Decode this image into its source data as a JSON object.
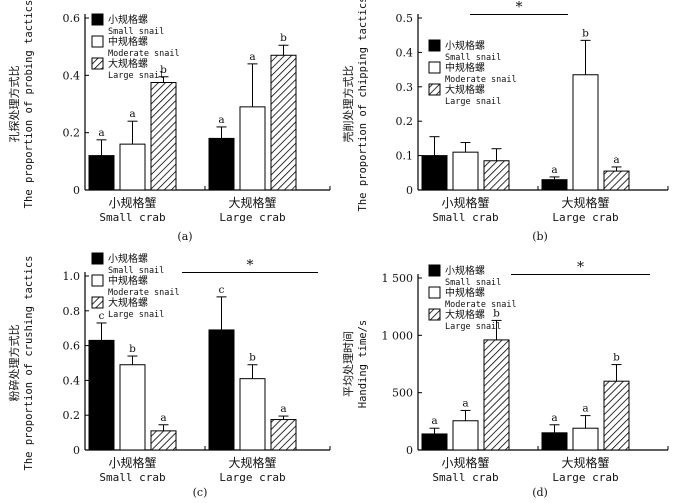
{
  "figure": {
    "legend": [
      {
        "cn": "小规格螺",
        "en": "Small snail",
        "fill": "solid",
        "color": "#000000"
      },
      {
        "cn": "中规格螺",
        "en": "Moderate snail",
        "fill": "white",
        "color": "#ffffff"
      },
      {
        "cn": "大规格螺",
        "en": "Large snail",
        "fill": "hatch",
        "color": "#ffffff"
      }
    ],
    "categories": [
      {
        "cn": "小规格蟹",
        "en": "Small crab"
      },
      {
        "cn": "大规格蟹",
        "en": "Large crab"
      }
    ]
  },
  "chart_data": [
    {
      "type": "bar",
      "panel_label": "(a)",
      "ylabel_cn": "孔探处理方式比",
      "ylabel_en": "The proportion of probing tactics",
      "ylim": [
        0,
        0.6
      ],
      "yticks": [
        0,
        0.2,
        0.4,
        0.6
      ],
      "ytick_labels": [
        "0",
        "0.2",
        "0.4",
        "0.6"
      ],
      "series": [
        {
          "name": "Small snail",
          "values": [
            0.12,
            0.18
          ],
          "errors": [
            0.055,
            0.04
          ],
          "letters": [
            "a",
            "a"
          ]
        },
        {
          "name": "Moderate snail",
          "values": [
            0.16,
            0.29
          ],
          "errors": [
            0.08,
            0.15
          ],
          "letters": [
            "a",
            "a"
          ]
        },
        {
          "name": "Large snail",
          "values": [
            0.375,
            0.47
          ],
          "errors": [
            0.02,
            0.035
          ],
          "letters": [
            "b",
            "b"
          ]
        }
      ],
      "significance": null
    },
    {
      "type": "bar",
      "panel_label": "(b)",
      "ylabel_cn": "壳削处理方式比",
      "ylabel_en": "The proportion of chipping tactics",
      "ylim": [
        0,
        0.5
      ],
      "yticks": [
        0,
        0.1,
        0.2,
        0.3,
        0.4,
        0.5
      ],
      "ytick_labels": [
        "0",
        "0.1",
        "0.2",
        "0.3",
        "0.4",
        "0.5"
      ],
      "series": [
        {
          "name": "Small snail",
          "values": [
            0.1,
            0.03
          ],
          "errors": [
            0.055,
            0.008
          ],
          "letters": [
            "",
            "a"
          ]
        },
        {
          "name": "Moderate snail",
          "values": [
            0.11,
            0.335
          ],
          "errors": [
            0.028,
            0.1
          ],
          "letters": [
            "",
            "b"
          ]
        },
        {
          "name": "Large snail",
          "values": [
            0.085,
            0.055
          ],
          "errors": [
            0.035,
            0.012
          ],
          "letters": [
            "",
            "a"
          ]
        }
      ],
      "significance": {
        "text": "*",
        "y": 0.51
      }
    },
    {
      "type": "bar",
      "panel_label": "(c)",
      "ylabel_cn": "粉碎处理方式比",
      "ylabel_en": "The proportion of crushing tactics",
      "ylim": [
        0,
        1.0
      ],
      "yticks": [
        0,
        0.2,
        0.4,
        0.6,
        0.8,
        1.0
      ],
      "ytick_labels": [
        "0",
        "0.2",
        "0.4",
        "0.6",
        "0.8",
        "1.0"
      ],
      "series": [
        {
          "name": "Small snail",
          "values": [
            0.63,
            0.69
          ],
          "errors": [
            0.1,
            0.19
          ],
          "letters": [
            "c",
            "c"
          ]
        },
        {
          "name": "Moderate snail",
          "values": [
            0.49,
            0.41
          ],
          "errors": [
            0.05,
            0.08
          ],
          "letters": [
            "b",
            "b"
          ]
        },
        {
          "name": "Large snail",
          "values": [
            0.11,
            0.175
          ],
          "errors": [
            0.035,
            0.02
          ],
          "letters": [
            "a",
            "a"
          ]
        }
      ],
      "significance": {
        "text": "*",
        "y": 1.02
      }
    },
    {
      "type": "bar",
      "panel_label": "(d)",
      "ylabel_cn": "平均处理时间",
      "ylabel_en": "Handing time/s",
      "ylim": [
        0,
        1500
      ],
      "yticks": [
        0,
        500,
        1000,
        1500
      ],
      "ytick_labels": [
        "0",
        "500",
        "1 000",
        "1 500"
      ],
      "series": [
        {
          "name": "Small snail",
          "values": [
            140,
            150
          ],
          "errors": [
            50,
            70
          ],
          "letters": [
            "a",
            "a"
          ]
        },
        {
          "name": "Moderate snail",
          "values": [
            255,
            190
          ],
          "errors": [
            90,
            110
          ],
          "letters": [
            "a",
            "a"
          ]
        },
        {
          "name": "Large snail",
          "values": [
            960,
            600
          ],
          "errors": [
            170,
            145
          ],
          "letters": [
            "b",
            "b"
          ]
        }
      ],
      "significance": {
        "text": "*",
        "y": 1530
      }
    }
  ]
}
